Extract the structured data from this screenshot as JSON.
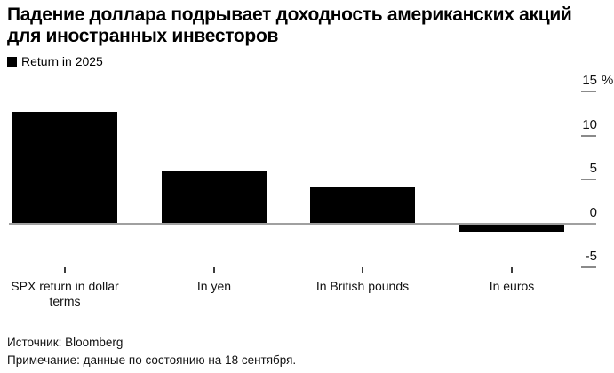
{
  "title": {
    "line1": "Падение доллара подрывает доходность американских акций",
    "line2": "для иностранных инвесторов"
  },
  "legend": {
    "label": "Return in 2025",
    "swatch_color": "#000000"
  },
  "chart_data": {
    "type": "bar",
    "title": "Падение доллара подрывает доходность американских акций для иностранных инвесторов",
    "series_name": "Return in 2025",
    "categories": [
      "SPX return in dollar terms",
      "In yen",
      "In British pounds",
      "In euros"
    ],
    "values": [
      12.7,
      5.9,
      4.2,
      -0.9
    ],
    "unit": "%",
    "ylim": [
      -5,
      15
    ],
    "yticks": [
      15,
      10,
      5,
      0,
      -5
    ],
    "ytick_labels": [
      "15",
      "10",
      "5",
      "0",
      "-5"
    ],
    "y_unit_suffix": "%",
    "bar_color": "#000000",
    "axis_color": "#a0a0a0",
    "tick_color": "#8a8a8a",
    "grid": false,
    "legend_position": "top-left",
    "axis_side": "right"
  },
  "footer": {
    "source": "Источник: Bloomberg",
    "note": "Примечание: данные по состоянию на 18 сентября."
  }
}
